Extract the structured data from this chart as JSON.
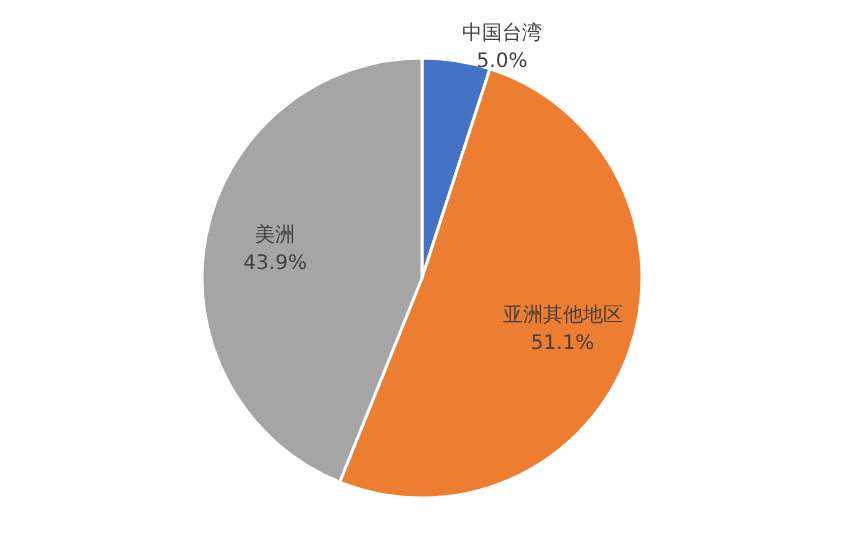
{
  "chart_data": {
    "type": "pie",
    "categories": [
      "中国台湾",
      "亚洲其他地区",
      "美洲"
    ],
    "values": [
      5.0,
      51.1,
      43.9
    ],
    "value_labels": [
      "5.0%",
      "51.1%",
      "43.9%"
    ],
    "colors": [
      "#4472c4",
      "#ed7d31",
      "#a5a5a5"
    ]
  }
}
